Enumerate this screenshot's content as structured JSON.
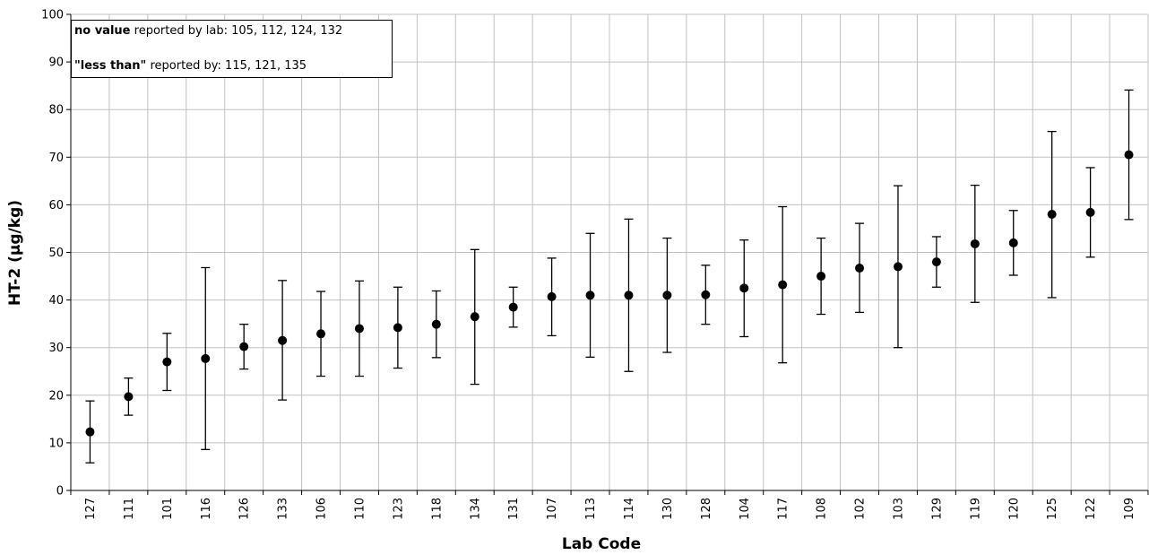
{
  "chart_data": {
    "type": "scatter",
    "xlabel": "Lab Code",
    "ylabel": "HT-2 (µg/kg)",
    "ylim": [
      0,
      100
    ],
    "yticks": [
      0,
      10,
      20,
      30,
      40,
      50,
      60,
      70,
      80,
      90,
      100
    ],
    "grid": true,
    "categories": [
      "127",
      "111",
      "101",
      "116",
      "126",
      "133",
      "106",
      "110",
      "123",
      "118",
      "134",
      "131",
      "107",
      "113",
      "114",
      "130",
      "128",
      "104",
      "117",
      "108",
      "102",
      "103",
      "129",
      "119",
      "120",
      "125",
      "122",
      "109"
    ],
    "values": [
      12.3,
      19.7,
      27.0,
      27.7,
      30.2,
      31.5,
      32.9,
      34.0,
      34.2,
      34.9,
      36.5,
      38.5,
      40.7,
      41.0,
      41.0,
      41.0,
      41.1,
      42.5,
      43.2,
      45.0,
      46.7,
      47.0,
      48.0,
      51.8,
      52.0,
      58.0,
      58.4,
      70.5
    ],
    "error_low": [
      5.8,
      15.8,
      21.0,
      8.6,
      25.5,
      19.0,
      24.0,
      24.0,
      25.7,
      27.9,
      22.3,
      34.3,
      32.5,
      28.0,
      25.0,
      29.0,
      34.9,
      32.3,
      26.8,
      37.0,
      37.4,
      30.0,
      42.7,
      39.5,
      45.2,
      40.5,
      49.0,
      56.9
    ],
    "error_high": [
      18.8,
      23.6,
      33.0,
      46.8,
      34.9,
      44.1,
      41.8,
      44.0,
      42.7,
      41.9,
      50.6,
      42.7,
      48.8,
      54.0,
      57.0,
      53.0,
      47.3,
      52.6,
      59.6,
      53.0,
      56.1,
      64.0,
      53.3,
      64.1,
      58.8,
      75.4,
      67.8,
      84.1
    ]
  },
  "notes": [
    {
      "bold": "no value",
      "rest": " reported by lab: 105, 112, 124, 132"
    },
    {
      "bold": "\"less than\"",
      "rest": " reported by: 115, 121, 135"
    }
  ]
}
